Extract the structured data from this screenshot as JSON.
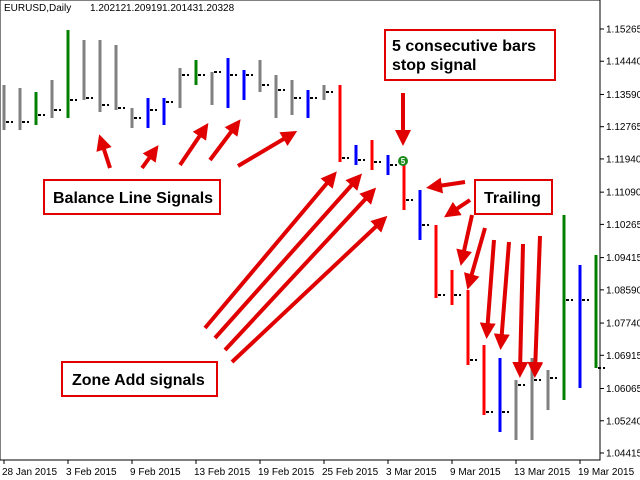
{
  "chart_data": {
    "type": "hlc",
    "symbol": "EURUSD,Daily",
    "header_values": [
      1.20212,
      1.20919,
      1.20143,
      1.20328
    ],
    "categories": [
      "28 Jan 2015",
      null,
      null,
      null,
      "3 Feb 2015",
      null,
      null,
      null,
      "9 Feb 2015",
      null,
      null,
      null,
      "13 Feb 2015",
      null,
      null,
      null,
      "19 Feb 2015",
      null,
      null,
      null,
      "25 Feb 2015",
      null,
      null,
      null,
      "3 Mar 2015",
      null,
      null,
      null,
      "9 Mar 2015",
      null,
      null,
      null,
      "13 Mar 2015",
      null,
      null,
      null,
      "19 Mar 2015",
      null
    ],
    "high": [
      1.13832,
      1.13755,
      1.13653,
      1.1396,
      1.15239,
      1.14984,
      1.14984,
      1.14856,
      1.13243,
      1.13499,
      1.13499,
      1.14267,
      1.14472,
      1.14165,
      1.14523,
      1.14216,
      1.14472,
      1.14088,
      1.1396,
      1.13704,
      1.13832,
      1.13832,
      1.12297,
      1.12425,
      1.12041,
      1.11785,
      1.11145,
      1.10249,
      1.09098,
      1.08586,
      1.07179,
      1.06846,
      1.06283,
      1.06846,
      1.06539,
      1.10505,
      1.09226,
      1.09482
    ],
    "low": [
      1.1268,
      1.1268,
      1.12808,
      1.12987,
      1.12987,
      1.13448,
      1.13141,
      1.13192,
      1.12732,
      1.12732,
      1.12808,
      1.13243,
      1.13832,
      1.1332,
      1.13243,
      1.13448,
      1.13653,
      1.12987,
      1.13064,
      1.12987,
      1.13448,
      1.11862,
      1.11785,
      1.11657,
      1.11529,
      1.10633,
      1.09866,
      1.08381,
      1.08202,
      1.06667,
      1.05387,
      1.04952,
      1.04748,
      1.04748,
      1.05515,
      1.05771,
      1.06078,
      1.0659
    ],
    "close": [
      1.12885,
      1.12885,
      1.13064,
      1.13192,
      1.13448,
      1.13499,
      1.1332,
      1.13243,
      1.12987,
      1.13192,
      1.13397,
      1.14088,
      1.14088,
      1.14165,
      1.14088,
      1.14088,
      1.13832,
      1.13704,
      1.13499,
      1.13499,
      1.13653,
      1.11964,
      1.11913,
      1.11862,
      1.11785,
      1.10889,
      1.10249,
      1.08458,
      1.08458,
      1.06795,
      1.05464,
      1.05464,
      1.06155,
      1.06283,
      1.06334,
      1.0833,
      1.0833,
      1.0659
    ],
    "colors": [
      "#808080",
      "#808080",
      "#008000",
      "#808080",
      "#008000",
      "#808080",
      "#808080",
      "#808080",
      "#808080",
      "#0000ff",
      "#0000ff",
      "#808080",
      "#008000",
      "#808080",
      "#0000ff",
      "#0000ff",
      "#808080",
      "#808080",
      "#808080",
      "#0000ff",
      "#808080",
      "#ff0000",
      "#0000ff",
      "#ff0000",
      "#0000ff",
      "#ff0000",
      "#0000ff",
      "#ff0000",
      "#ff0000",
      "#ff0000",
      "#ff0000",
      "#0000ff",
      "#808080",
      "#808080",
      "#808080",
      "#008000",
      "#0000ff",
      "#008000"
    ],
    "ylim": [
      1.04236,
      1.16007
    ],
    "yticks": [
      1.15265,
      {
        "value": 1.1444,
        "label": "1.14440"
      },
      {
        "value": 1.1359,
        "label": "1.13590"
      },
      1.12765,
      {
        "value": 1.1194,
        "label": "1.11940"
      },
      {
        "value": 1.1109,
        "label": "1.11090"
      },
      1.10265,
      1.09415,
      {
        "value": 1.0859,
        "label": "1.08590"
      },
      {
        "value": 1.0774,
        "label": "1.07740"
      },
      1.06915,
      1.06065,
      {
        "value": 1.0524,
        "label": "1.05240"
      },
      1.04415
    ],
    "stop_marker": "5",
    "annotations": {
      "stop_signal": [
        "5 consecutive bars",
        "stop signal"
      ],
      "balance": "Balance Line Signals",
      "trailing": "Trailing",
      "zone_add": "Zone Add signals"
    }
  }
}
